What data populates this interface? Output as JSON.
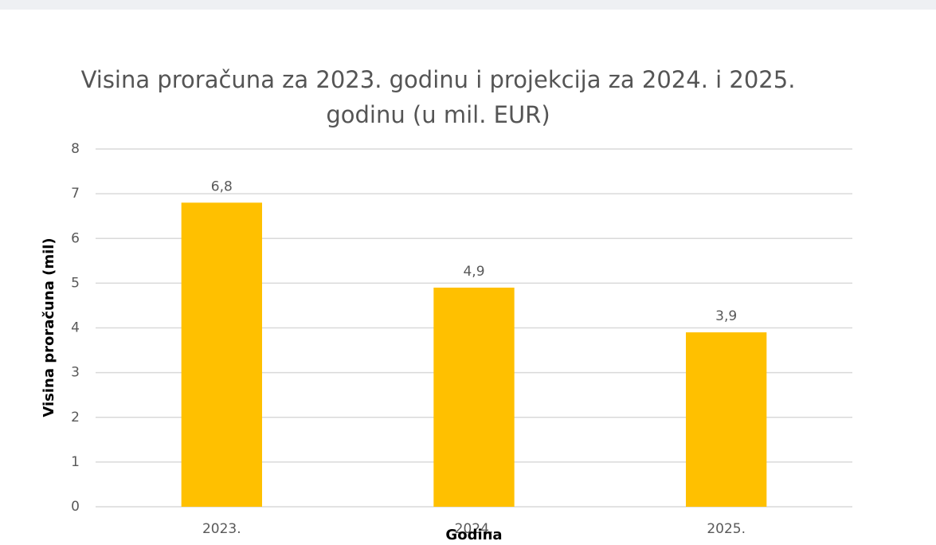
{
  "chart_data": {
    "type": "bar",
    "title": "Visina proračuna za 2023. godinu i projekcija za 2024. i 2025. godinu (u mil. EUR)",
    "x_label": "Godina",
    "y_label": "Visina proračuna  (mil)",
    "categories": [
      "2023.",
      "2024.",
      "2025."
    ],
    "values": [
      6.8,
      4.9,
      3.9
    ],
    "value_labels": [
      "6,8",
      "4,9",
      "3,9"
    ],
    "color": "#ffc000",
    "ylim": [
      0,
      8
    ],
    "yticks": [
      0,
      1,
      2,
      3,
      4,
      5,
      6,
      7,
      8
    ],
    "grid": true
  }
}
